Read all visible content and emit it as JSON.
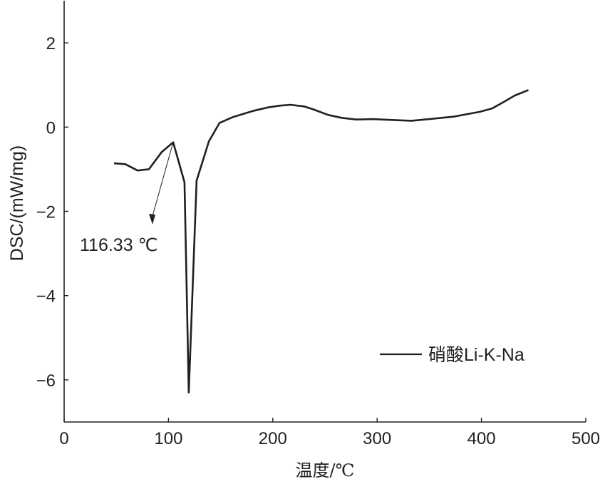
{
  "chart_data": {
    "type": "line",
    "title": "",
    "xlabel": "温度/℃",
    "ylabel": "DSC/(mW/mg)",
    "xlim": [
      0,
      500
    ],
    "ylim": [
      -7,
      3
    ],
    "xticks": [
      0,
      100,
      200,
      300,
      400,
      500
    ],
    "yticks": [
      2,
      0,
      -2,
      -4,
      -6
    ],
    "ytick_labels": [
      "2",
      "0",
      "−2",
      "−4",
      "−6"
    ],
    "grid": false,
    "legend": {
      "placement": "lower-right",
      "entries": [
        "硝酸Li-K-Na"
      ]
    },
    "annotation": {
      "text": "116.33 ℃",
      "x": 104.5,
      "y": -0.36
    },
    "series": [
      {
        "name": "硝酸Li-K-Na",
        "color": "#231f20",
        "x": [
          47.8,
          58.7,
          70.4,
          81.3,
          93.6,
          104.5,
          115.4,
          119.5,
          127,
          138.7,
          149,
          162,
          182,
          196,
          207,
          217,
          230,
          239,
          253,
          266,
          280,
          296,
          314,
          333,
          350,
          374,
          389,
          398,
          410,
          421,
          432,
          445
        ],
        "y": [
          -0.86,
          -0.88,
          -1.03,
          -1.0,
          -0.59,
          -0.36,
          -1.31,
          -6.3,
          -1.27,
          -0.34,
          0.1,
          0.24,
          0.39,
          0.47,
          0.51,
          0.53,
          0.49,
          0.42,
          0.29,
          0.22,
          0.18,
          0.19,
          0.17,
          0.15,
          0.19,
          0.25,
          0.32,
          0.36,
          0.44,
          0.59,
          0.75,
          0.88
        ]
      }
    ]
  }
}
